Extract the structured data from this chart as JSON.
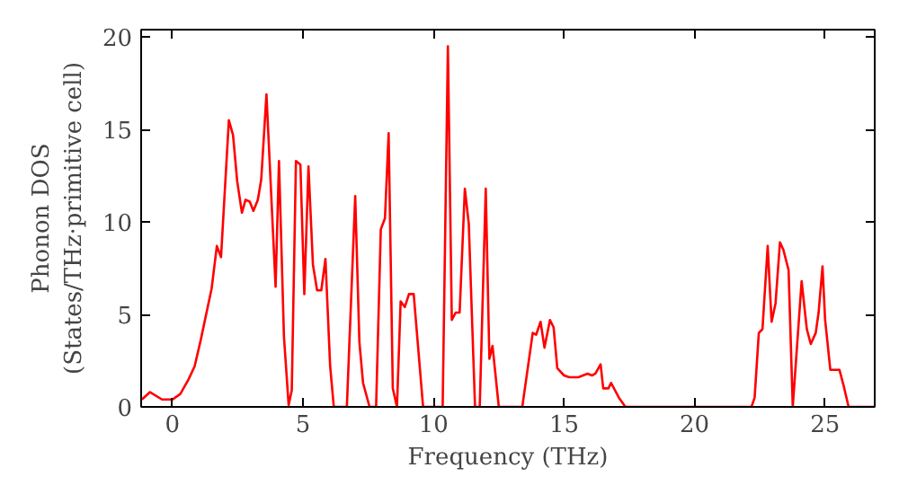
{
  "chart_data": {
    "type": "line",
    "xlabel": "Frequency (THz)",
    "ylabel": "Phonon DOS\n(States/THz·primitive cell)",
    "xlim": [
      -1.2,
      26.9
    ],
    "ylim": [
      0,
      20.4
    ],
    "xticks": [
      0,
      5,
      10,
      15,
      20,
      25
    ],
    "yticks": [
      0,
      5,
      10,
      15,
      20
    ],
    "grid": false,
    "marker": "none",
    "line_style": "solid",
    "series": [
      {
        "color": "#ff0000",
        "x": [
          -1.17,
          -0.86,
          -0.4,
          0.0,
          0.3,
          0.62,
          0.85,
          1.08,
          1.5,
          1.7,
          1.86,
          2.16,
          2.32,
          2.48,
          2.66,
          2.8,
          2.96,
          3.1,
          3.27,
          3.4,
          3.6,
          3.95,
          4.08,
          4.27,
          4.45,
          4.57,
          4.73,
          4.9,
          5.05,
          5.21,
          5.38,
          5.54,
          5.7,
          5.86,
          6.04,
          6.18,
          6.68,
          7.0,
          7.16,
          7.3,
          7.55,
          7.8,
          7.98,
          8.14,
          8.28,
          8.44,
          8.6,
          8.74,
          8.9,
          9.06,
          9.24,
          9.6,
          10.35,
          10.55,
          10.7,
          10.85,
          11.0,
          11.2,
          11.35,
          11.59,
          11.77,
          12.0,
          12.14,
          12.26,
          12.5,
          13.4,
          13.8,
          13.93,
          14.1,
          14.25,
          14.46,
          14.6,
          14.74,
          15.0,
          15.2,
          15.55,
          15.9,
          16.07,
          16.2,
          16.4,
          16.5,
          16.7,
          16.8,
          17.1,
          17.35,
          22.18,
          22.3,
          22.46,
          22.6,
          22.8,
          22.95,
          23.1,
          23.27,
          23.4,
          23.6,
          23.76,
          23.9,
          24.1,
          24.3,
          24.45,
          24.64,
          24.75,
          24.9,
          25.0,
          25.2,
          25.55,
          25.7,
          25.9,
          26.9
        ],
        "values": [
          0.4,
          0.8,
          0.4,
          0.4,
          0.7,
          1.5,
          2.2,
          3.6,
          6.4,
          8.7,
          8.1,
          15.5,
          14.7,
          12.2,
          10.5,
          11.2,
          11.1,
          10.6,
          11.2,
          12.3,
          16.9,
          6.5,
          13.3,
          3.8,
          0.1,
          0.9,
          13.3,
          13.1,
          6.1,
          13.0,
          7.7,
          6.3,
          6.3,
          8.0,
          2.2,
          0,
          0,
          11.4,
          3.5,
          1.3,
          0,
          0,
          9.6,
          10.2,
          14.8,
          1.0,
          0,
          5.7,
          5.4,
          6.1,
          6.1,
          0,
          0,
          19.5,
          4.7,
          5.1,
          5.1,
          11.8,
          9.9,
          0,
          0,
          11.8,
          2.6,
          3.3,
          0,
          0,
          4.0,
          3.9,
          4.6,
          3.2,
          4.7,
          4.3,
          2.1,
          1.7,
          1.6,
          1.6,
          1.8,
          1.7,
          1.8,
          2.3,
          1.0,
          1.0,
          1.3,
          0.5,
          0,
          0,
          0.5,
          4.0,
          4.2,
          8.7,
          4.6,
          5.6,
          8.9,
          8.5,
          7.4,
          0,
          2.8,
          6.8,
          4.2,
          3.4,
          4.0,
          5.1,
          7.6,
          4.7,
          2.0,
          2.0,
          1.2,
          0,
          0
        ]
      }
    ]
  }
}
